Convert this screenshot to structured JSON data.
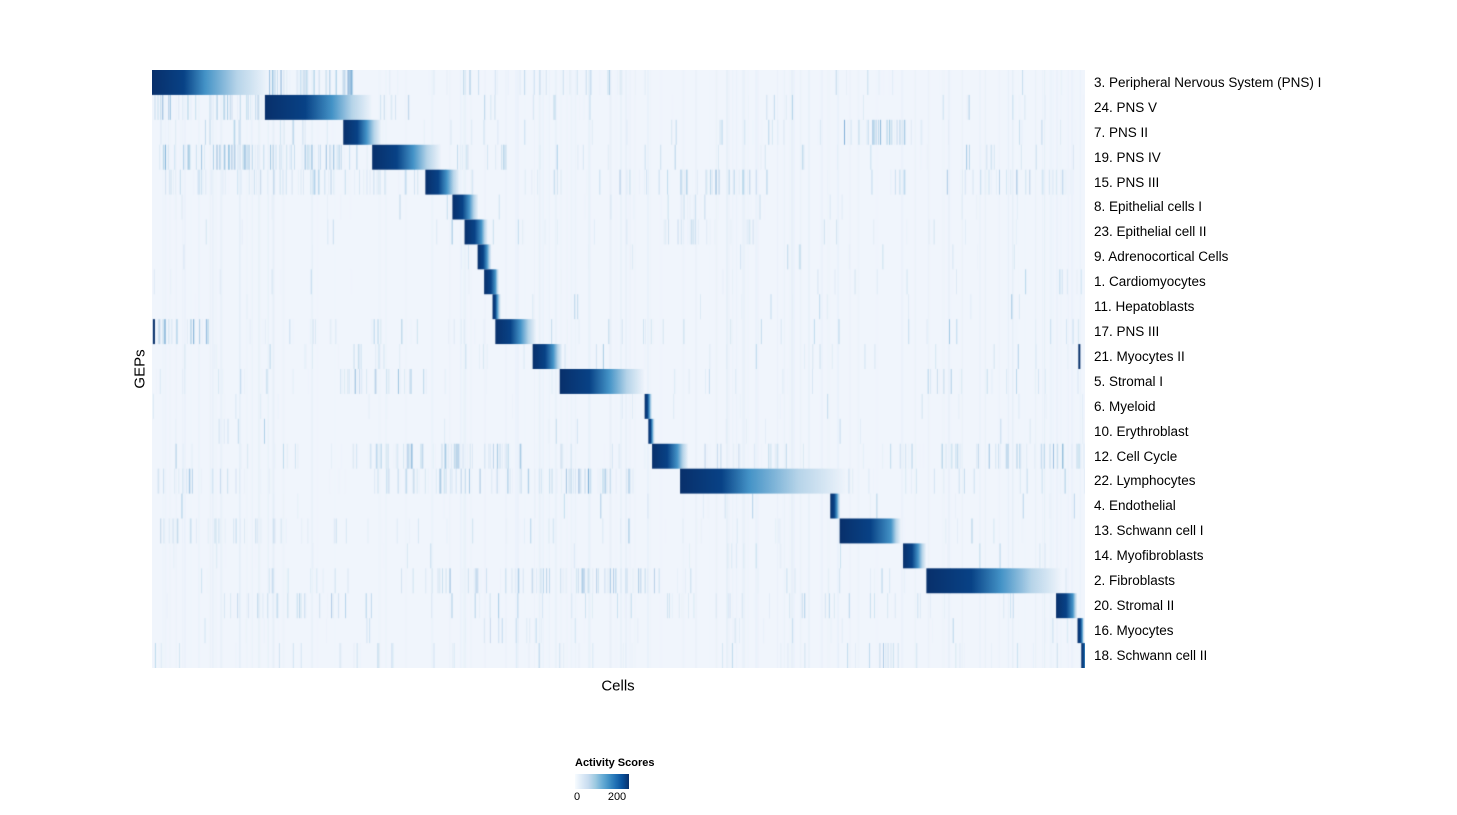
{
  "chart_data": {
    "type": "heatmap",
    "title": "",
    "xlabel": "Cells",
    "ylabel": "GEPs",
    "legend": {
      "title": "Activity Scores",
      "tick_min": "0",
      "tick_max": "200"
    },
    "colormap": "Blues",
    "colormap_stops": [
      "#f7fbff",
      "#deebf7",
      "#c6dbef",
      "#9ecae1",
      "#6baed6",
      "#4292c6",
      "#2171b5",
      "#08519c",
      "#08306b"
    ],
    "background_value_color": "#f0f5fc",
    "rows": [
      {
        "label": "3. Peripheral Nervous System (PNS) I",
        "start": 0.0,
        "dark_end": 0.057,
        "fade_end": 0.125,
        "nl": 0.8,
        "noise": [
          {
            "s": 0.125,
            "e": 0.23,
            "d": 0.5,
            "a": 0.5
          },
          {
            "s": 0.3,
            "e": 0.5,
            "d": 0.12,
            "a": 0.3
          }
        ]
      },
      {
        "label": "24. PNS V",
        "start": 0.121,
        "dark_end": 0.193,
        "fade_end": 0.236,
        "nl": 0.7,
        "noise": [
          {
            "s": 0.0,
            "e": 0.12,
            "d": 0.35,
            "a": 0.45
          },
          {
            "s": 0.24,
            "e": 0.28,
            "d": 0.2,
            "a": 0.3
          }
        ]
      },
      {
        "label": "7. PNS II",
        "start": 0.205,
        "dark_end": 0.23,
        "fade_end": 0.246,
        "nl": 0.6,
        "noise": [
          {
            "s": 0.74,
            "e": 0.81,
            "d": 0.55,
            "a": 0.5
          },
          {
            "s": 0.0,
            "e": 0.2,
            "d": 0.1,
            "a": 0.25
          }
        ]
      },
      {
        "label": "19. PNS IV",
        "start": 0.236,
        "dark_end": 0.28,
        "fade_end": 0.31,
        "nl": 0.9,
        "noise": [
          {
            "s": 0.0,
            "e": 0.22,
            "d": 0.45,
            "a": 0.45
          },
          {
            "s": 0.3,
            "e": 0.38,
            "d": 0.2,
            "a": 0.3
          }
        ]
      },
      {
        "label": "15. PNS III",
        "start": 0.293,
        "dark_end": 0.316,
        "fade_end": 0.33,
        "nl": 1.0,
        "noise": [
          {
            "s": 0.0,
            "e": 0.3,
            "d": 0.2,
            "a": 0.3
          },
          {
            "s": 0.5,
            "e": 0.65,
            "d": 0.25,
            "a": 0.35
          },
          {
            "s": 0.85,
            "e": 1.0,
            "d": 0.2,
            "a": 0.3
          }
        ]
      },
      {
        "label": "8. Epithelial cells I",
        "start": 0.322,
        "dark_end": 0.34,
        "fade_end": 0.35,
        "nl": 0.4,
        "noise": [
          {
            "s": 0.55,
            "e": 0.62,
            "d": 0.15,
            "a": 0.3
          }
        ]
      },
      {
        "label": "23. Epithelial cell II",
        "start": 0.335,
        "dark_end": 0.353,
        "fade_end": 0.36,
        "nl": 0.5,
        "noise": [
          {
            "s": 0.55,
            "e": 0.65,
            "d": 0.2,
            "a": 0.3
          }
        ]
      },
      {
        "label": "9. Adrenocortical Cells",
        "start": 0.349,
        "dark_end": 0.359,
        "fade_end": 0.364,
        "nl": 0.25,
        "noise": []
      },
      {
        "label": "1. Cardiomyocytes",
        "start": 0.356,
        "dark_end": 0.368,
        "fade_end": 0.372,
        "nl": 0.3,
        "noise": [
          {
            "s": 0.97,
            "e": 1.0,
            "d": 0.3,
            "a": 0.35
          }
        ]
      },
      {
        "label": "11. Hepatoblasts",
        "start": 0.365,
        "dark_end": 0.37,
        "fade_end": 0.374,
        "nl": 0.25,
        "noise": []
      },
      {
        "label": "17. PNS III",
        "start": 0.368,
        "dark_end": 0.395,
        "fade_end": 0.412,
        "nl": 0.8,
        "noise": [
          {
            "s": 0.0,
            "e": 0.06,
            "d": 0.5,
            "a": 0.6
          },
          {
            "s": 0.1,
            "e": 0.2,
            "d": 0.15,
            "a": 0.3
          }
        ],
        "edge": [
          0.001
        ]
      },
      {
        "label": "21. Myocytes II",
        "start": 0.408,
        "dark_end": 0.43,
        "fade_end": 0.44,
        "nl": 0.6,
        "noise": [
          {
            "s": 0.2,
            "e": 0.25,
            "d": 0.2,
            "a": 0.3
          }
        ],
        "edge": [
          0.995
        ]
      },
      {
        "label": "5. Stromal I",
        "start": 0.437,
        "dark_end": 0.49,
        "fade_end": 0.528,
        "nl": 0.8,
        "noise": [
          {
            "s": 0.2,
            "e": 0.3,
            "d": 0.3,
            "a": 0.35
          },
          {
            "s": 0.83,
            "e": 0.87,
            "d": 0.25,
            "a": 0.3
          }
        ]
      },
      {
        "label": "6. Myeloid",
        "start": 0.528,
        "dark_end": 0.533,
        "fade_end": 0.536,
        "nl": 0.3,
        "noise": []
      },
      {
        "label": "10. Erythroblast",
        "start": 0.532,
        "dark_end": 0.536,
        "fade_end": 0.539,
        "nl": 0.3,
        "noise": []
      },
      {
        "label": "12. Cell Cycle",
        "start": 0.536,
        "dark_end": 0.563,
        "fade_end": 0.575,
        "nl": 1.0,
        "noise": [
          {
            "s": 0.2,
            "e": 0.33,
            "d": 0.3,
            "a": 0.4
          },
          {
            "s": 0.3,
            "e": 0.45,
            "d": 0.25,
            "a": 0.35
          },
          {
            "s": 0.8,
            "e": 1.0,
            "d": 0.3,
            "a": 0.35
          },
          {
            "s": 0.58,
            "e": 0.68,
            "d": 0.2,
            "a": 0.3
          }
        ]
      },
      {
        "label": "22. Lymphocytes",
        "start": 0.566,
        "dark_end": 0.64,
        "fade_end": 0.745,
        "nl": 0.9,
        "noise": [
          {
            "s": 0.25,
            "e": 0.5,
            "d": 0.35,
            "a": 0.4
          },
          {
            "s": 0.0,
            "e": 0.1,
            "d": 0.2,
            "a": 0.3
          }
        ]
      },
      {
        "label": "4. Endothelial",
        "start": 0.727,
        "dark_end": 0.734,
        "fade_end": 0.738,
        "nl": 0.3,
        "noise": []
      },
      {
        "label": "13. Schwann cell I",
        "start": 0.737,
        "dark_end": 0.792,
        "fade_end": 0.803,
        "nl": 0.7,
        "noise": [
          {
            "s": 0.0,
            "e": 0.1,
            "d": 0.2,
            "a": 0.3
          },
          {
            "s": 0.1,
            "e": 0.2,
            "d": 0.15,
            "a": 0.3
          }
        ]
      },
      {
        "label": "14. Myofibroblasts",
        "start": 0.805,
        "dark_end": 0.821,
        "fade_end": 0.83,
        "nl": 0.4,
        "noise": []
      },
      {
        "label": "2. Fibroblasts",
        "start": 0.83,
        "dark_end": 0.91,
        "fade_end": 0.975,
        "nl": 0.9,
        "noise": [
          {
            "s": 0.3,
            "e": 0.55,
            "d": 0.3,
            "a": 0.4
          },
          {
            "s": 0.12,
            "e": 0.2,
            "d": 0.2,
            "a": 0.3
          }
        ]
      },
      {
        "label": "20. Stromal II",
        "start": 0.969,
        "dark_end": 0.987,
        "fade_end": 0.992,
        "nl": 0.7,
        "noise": [
          {
            "s": 0.08,
            "e": 0.2,
            "d": 0.25,
            "a": 0.35
          },
          {
            "s": 0.55,
            "e": 0.62,
            "d": 0.2,
            "a": 0.3
          }
        ]
      },
      {
        "label": "16. Myocytes",
        "start": 0.992,
        "dark_end": 0.997,
        "fade_end": 0.999,
        "nl": 0.5,
        "noise": [
          {
            "s": 0.35,
            "e": 0.42,
            "d": 0.2,
            "a": 0.3
          }
        ]
      },
      {
        "label": "18. Schwann cell II",
        "start": 0.996,
        "dark_end": 1.0,
        "fade_end": 1.0,
        "nl": 0.7,
        "noise": [
          {
            "s": 0.74,
            "e": 0.8,
            "d": 0.3,
            "a": 0.35
          },
          {
            "s": 0.2,
            "e": 0.25,
            "d": 0.15,
            "a": 0.3
          }
        ]
      }
    ]
  }
}
